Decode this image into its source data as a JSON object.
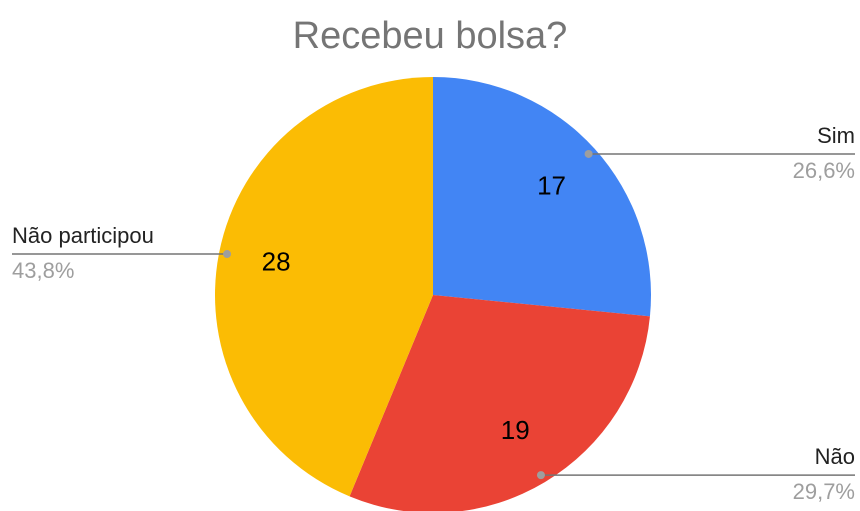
{
  "chart_data": {
    "type": "pie",
    "title": "Recebeu bolsa?",
    "categories": [
      "Sim",
      "Não",
      "Não participou"
    ],
    "values": [
      17,
      19,
      28
    ],
    "percent_values": [
      26.6,
      29.7,
      43.8
    ],
    "percent_labels": [
      "26,6%",
      "29,7%",
      "43,8%"
    ],
    "colors": [
      "#4285f4",
      "#ea4335",
      "#fbbc04"
    ]
  }
}
